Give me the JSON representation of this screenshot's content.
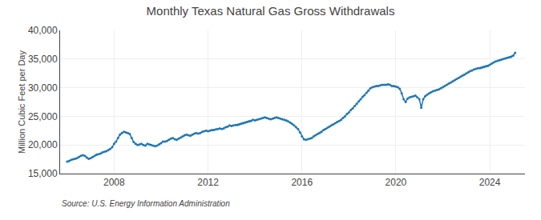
{
  "chart_data": {
    "type": "line",
    "title": "Monthly Texas Natural Gas Gross Withdrawals",
    "ylabel": "Million Cubic Feet per Day",
    "annotations": [
      "Source: U.S. Energy Information Administration"
    ],
    "marker": "circle",
    "grid": true,
    "xlim": [
      2005.7,
      2025.5
    ],
    "xticks": [
      2008,
      2012,
      2016,
      2020,
      2024
    ],
    "ylim": [
      15000,
      40000
    ],
    "yticks": [
      {
        "value": 15000,
        "label": "15,000"
      },
      {
        "value": 20000,
        "label": "20,000"
      },
      {
        "value": 25000,
        "label": "25,000"
      },
      {
        "value": 30000,
        "label": "30,000"
      },
      {
        "value": 35000,
        "label": "35,000"
      },
      {
        "value": 40000,
        "label": "40,000"
      }
    ],
    "x": [
      2006.0,
      2006.083,
      2006.167,
      2006.25,
      2006.333,
      2006.417,
      2006.5,
      2006.583,
      2006.667,
      2006.75,
      2006.833,
      2006.917,
      2007.0,
      2007.083,
      2007.167,
      2007.25,
      2007.333,
      2007.417,
      2007.5,
      2007.583,
      2007.667,
      2007.75,
      2007.833,
      2007.917,
      2008.0,
      2008.083,
      2008.167,
      2008.25,
      2008.333,
      2008.417,
      2008.5,
      2008.583,
      2008.667,
      2008.75,
      2008.833,
      2008.917,
      2009.0,
      2009.083,
      2009.167,
      2009.25,
      2009.333,
      2009.417,
      2009.5,
      2009.583,
      2009.667,
      2009.75,
      2009.833,
      2009.917,
      2010.0,
      2010.083,
      2010.167,
      2010.25,
      2010.333,
      2010.417,
      2010.5,
      2010.583,
      2010.667,
      2010.75,
      2010.833,
      2010.917,
      2011.0,
      2011.083,
      2011.167,
      2011.25,
      2011.333,
      2011.417,
      2011.5,
      2011.583,
      2011.667,
      2011.75,
      2011.833,
      2011.917,
      2012.0,
      2012.083,
      2012.167,
      2012.25,
      2012.333,
      2012.417,
      2012.5,
      2012.583,
      2012.667,
      2012.75,
      2012.833,
      2012.917,
      2013.0,
      2013.083,
      2013.167,
      2013.25,
      2013.333,
      2013.417,
      2013.5,
      2013.583,
      2013.667,
      2013.75,
      2013.833,
      2013.917,
      2014.0,
      2014.083,
      2014.167,
      2014.25,
      2014.333,
      2014.417,
      2014.5,
      2014.583,
      2014.667,
      2014.75,
      2014.833,
      2014.917,
      2015.0,
      2015.083,
      2015.167,
      2015.25,
      2015.333,
      2015.417,
      2015.5,
      2015.583,
      2015.667,
      2015.75,
      2015.833,
      2015.917,
      2016.0,
      2016.083,
      2016.167,
      2016.25,
      2016.333,
      2016.417,
      2016.5,
      2016.583,
      2016.667,
      2016.75,
      2016.833,
      2016.917,
      2017.0,
      2017.083,
      2017.167,
      2017.25,
      2017.333,
      2017.417,
      2017.5,
      2017.583,
      2017.667,
      2017.75,
      2017.833,
      2017.917,
      2018.0,
      2018.083,
      2018.167,
      2018.25,
      2018.333,
      2018.417,
      2018.5,
      2018.583,
      2018.667,
      2018.75,
      2018.833,
      2018.917,
      2019.0,
      2019.083,
      2019.167,
      2019.25,
      2019.333,
      2019.417,
      2019.5,
      2019.583,
      2019.667,
      2019.75,
      2019.833,
      2019.917,
      2020.0,
      2020.083,
      2020.167,
      2020.25,
      2020.333,
      2020.417,
      2020.5,
      2020.583,
      2020.667,
      2020.75,
      2020.833,
      2020.917,
      2021.0,
      2021.083,
      2021.167,
      2021.25,
      2021.333,
      2021.417,
      2021.5,
      2021.583,
      2021.667,
      2021.75,
      2021.833,
      2021.917,
      2022.0,
      2022.083,
      2022.167,
      2022.25,
      2022.333,
      2022.417,
      2022.5,
      2022.583,
      2022.667,
      2022.75,
      2022.833,
      2022.917,
      2023.0,
      2023.083,
      2023.167,
      2023.25,
      2023.333,
      2023.417,
      2023.5,
      2023.583,
      2023.667,
      2023.75,
      2023.833,
      2023.917,
      2024.0,
      2024.083,
      2024.167,
      2024.25,
      2024.333,
      2024.417,
      2024.5,
      2024.583,
      2024.667,
      2024.75,
      2024.833,
      2024.917,
      2025.0,
      2025.083
    ],
    "values": [
      17100,
      17200,
      17400,
      17500,
      17600,
      17700,
      17900,
      18100,
      18200,
      18100,
      17800,
      17600,
      17700,
      17900,
      18100,
      18300,
      18400,
      18500,
      18700,
      18800,
      18900,
      19100,
      19300,
      19600,
      20200,
      20600,
      21200,
      21800,
      22100,
      22300,
      22200,
      22100,
      21900,
      21200,
      20500,
      20200,
      20000,
      20100,
      20200,
      20000,
      19900,
      20200,
      20100,
      20000,
      19900,
      19800,
      19900,
      20100,
      20300,
      20600,
      20600,
      20700,
      20900,
      21100,
      21200,
      21000,
      20900,
      21100,
      21300,
      21500,
      21700,
      21800,
      21700,
      21600,
      21800,
      22000,
      22100,
      22000,
      22100,
      22300,
      22400,
      22500,
      22400,
      22500,
      22600,
      22600,
      22700,
      22800,
      22900,
      22800,
      22900,
      23100,
      23200,
      23400,
      23300,
      23400,
      23500,
      23500,
      23600,
      23700,
      23800,
      23900,
      24000,
      24100,
      24200,
      24400,
      24300,
      24400,
      24500,
      24600,
      24700,
      24800,
      24700,
      24600,
      24500,
      24600,
      24700,
      24800,
      24700,
      24600,
      24500,
      24400,
      24300,
      24100,
      23900,
      23700,
      23400,
      23100,
      22800,
      22200,
      21500,
      21000,
      20900,
      21000,
      21100,
      21200,
      21500,
      21700,
      21900,
      22100,
      22300,
      22600,
      22800,
      23000,
      23200,
      23400,
      23600,
      23800,
      24000,
      24200,
      24400,
      24700,
      25000,
      25400,
      25700,
      26100,
      26400,
      26800,
      27200,
      27600,
      28000,
      28400,
      28700,
      29100,
      29500,
      29900,
      30100,
      30200,
      30300,
      30300,
      30400,
      30500,
      30500,
      30500,
      30600,
      30500,
      30300,
      30300,
      30200,
      30100,
      29800,
      29000,
      28000,
      27500,
      28100,
      28300,
      28400,
      28500,
      28600,
      28300,
      28000,
      26500,
      28000,
      28500,
      28800,
      29000,
      29200,
      29400,
      29500,
      29600,
      29700,
      29900,
      30100,
      30300,
      30500,
      30700,
      30900,
      31100,
      31300,
      31500,
      31700,
      31900,
      32100,
      32300,
      32500,
      32700,
      32900,
      33000,
      33200,
      33300,
      33400,
      33400,
      33500,
      33600,
      33700,
      33800,
      34000,
      34200,
      34400,
      34600,
      34700,
      34800,
      34900,
      35000,
      35100,
      35200,
      35300,
      35400,
      35600,
      36100
    ]
  }
}
